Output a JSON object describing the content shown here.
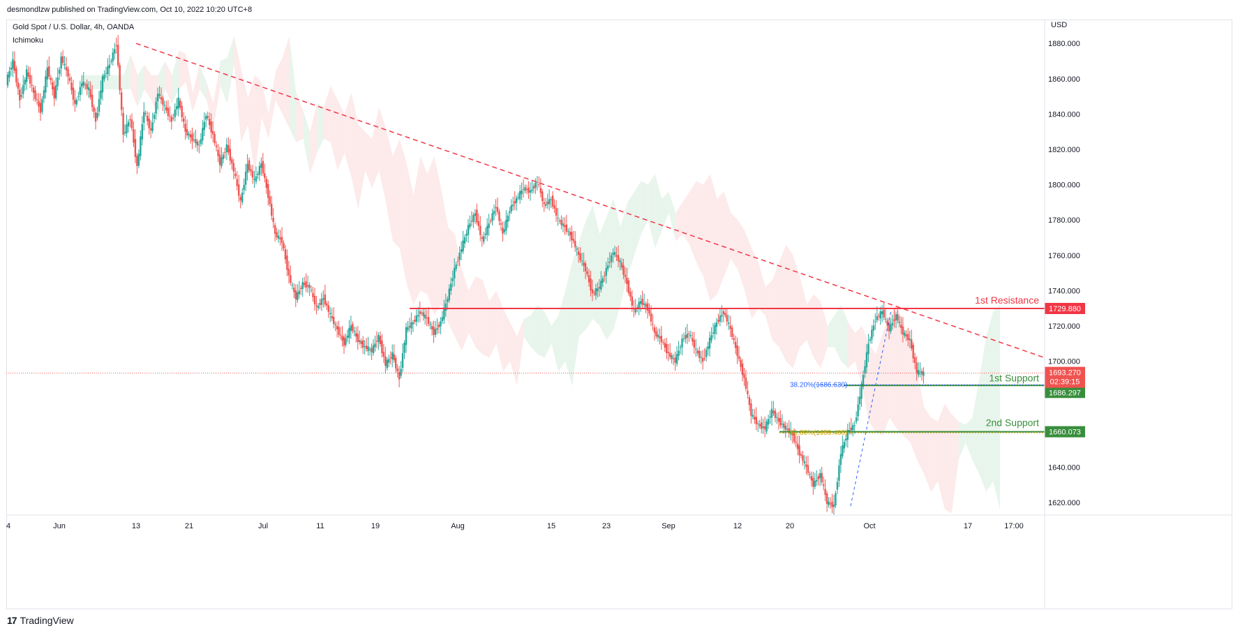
{
  "header": {
    "published": "desmondlzw published on TradingView.com, Oct 10, 2022 10:20 UTC+8",
    "symbol": "Gold Spot / U.S. Dollar, 4h, OANDA",
    "indicator": "Ichimoku"
  },
  "footer": {
    "logo_glyph": "17",
    "brand": "TradingView"
  },
  "colors": {
    "bull": "#26a69a",
    "bear": "#ef5350",
    "resistance": "#f23645",
    "support": "#388e3c",
    "cloud_bull": "#e6f4ea",
    "cloud_bear": "#fde8e8",
    "fib_blue": "#2962ff",
    "fib_gold": "#c9a400",
    "axis_text": "#131722"
  },
  "chart_data": {
    "type": "candlestick",
    "currency": "USD",
    "ylim": [
      1610,
      1890
    ],
    "y_ticks": [
      "1880.000",
      "1860.000",
      "1840.000",
      "1820.000",
      "1800.000",
      "1780.000",
      "1760.000",
      "1740.000",
      "1720.000",
      "1700.000",
      "1640.000",
      "1620.000"
    ],
    "x_ticks": [
      "4",
      "Jun",
      "13",
      "21",
      "Jul",
      "11",
      "19",
      "Aug",
      "15",
      "23",
      "Sep",
      "12",
      "20",
      "Oct",
      "17",
      "17:00"
    ],
    "price_path": [
      1858,
      1870,
      1848,
      1864,
      1852,
      1842,
      1866,
      1850,
      1872,
      1862,
      1845,
      1858,
      1854,
      1836,
      1860,
      1868,
      1880,
      1828,
      1838,
      1810,
      1842,
      1830,
      1852,
      1844,
      1836,
      1848,
      1830,
      1826,
      1822,
      1840,
      1828,
      1812,
      1822,
      1808,
      1790,
      1812,
      1802,
      1812,
      1794,
      1772,
      1768,
      1748,
      1736,
      1744,
      1742,
      1730,
      1736,
      1726,
      1718,
      1710,
      1720,
      1712,
      1708,
      1706,
      1714,
      1698,
      1704,
      1690,
      1718,
      1722,
      1728,
      1724,
      1716,
      1722,
      1736,
      1752,
      1764,
      1776,
      1784,
      1768,
      1778,
      1788,
      1772,
      1786,
      1792,
      1798,
      1796,
      1802,
      1788,
      1792,
      1780,
      1776,
      1770,
      1760,
      1752,
      1738,
      1742,
      1752,
      1762,
      1756,
      1744,
      1728,
      1734,
      1730,
      1716,
      1712,
      1704,
      1700,
      1712,
      1716,
      1706,
      1700,
      1712,
      1722,
      1728,
      1718,
      1704,
      1690,
      1670,
      1664,
      1662,
      1672,
      1666,
      1662,
      1658,
      1648,
      1640,
      1630,
      1636,
      1620,
      1618,
      1648,
      1660,
      1664,
      1686,
      1710,
      1724,
      1728,
      1718,
      1726,
      1716,
      1712,
      1694,
      1693
    ],
    "overlays": {
      "resistance_1": {
        "label": "1st Resistance",
        "value": 1729.88,
        "price_label": "1729.880"
      },
      "support_1": {
        "label": "1st Support",
        "value": 1686.297,
        "price_label": "1686.297"
      },
      "support_2": {
        "label": "2nd Support",
        "value": 1660.073,
        "price_label": "1660.073"
      },
      "current": {
        "value": 1693.27,
        "price_label": "1693.270",
        "countdown": "02:39:15"
      },
      "fib_382": {
        "label": "38.20%(1686.630)",
        "value": 1686.63
      },
      "fib_618": {
        "label": "61.80%(1659.486)",
        "value": 1659.486
      },
      "trendline": {
        "from": 1880,
        "to": 1702,
        "style": "dashed"
      }
    },
    "grid": false,
    "legend": "none"
  }
}
